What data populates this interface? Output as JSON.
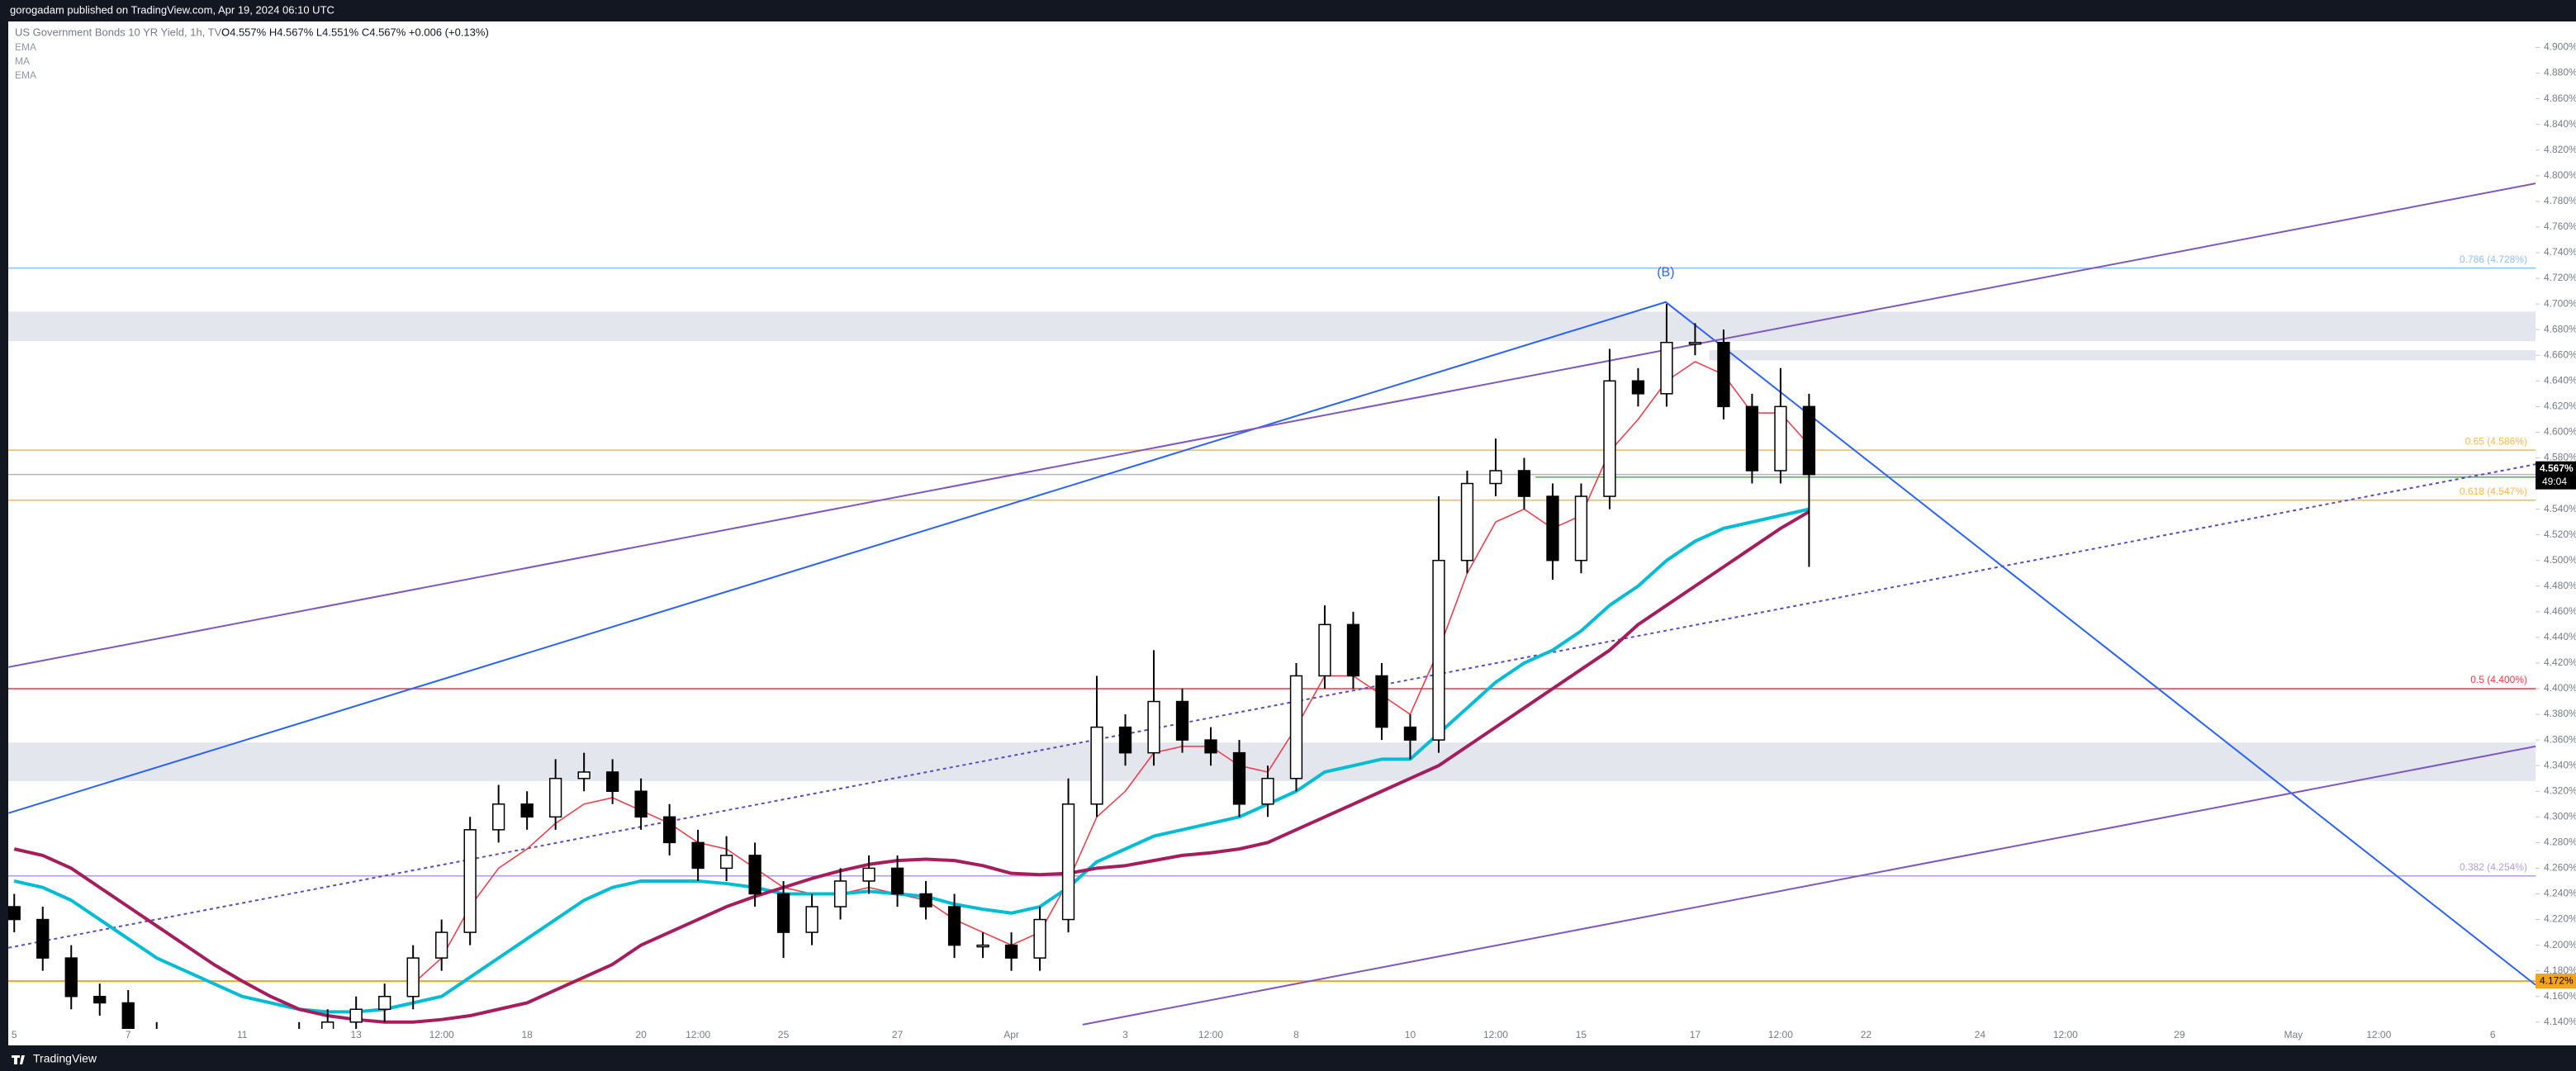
{
  "header": {
    "publisher": "gorogadam published on TradingView.com, Apr 19, 2024 06:10 UTC",
    "footer": "TradingView"
  },
  "chart_data": {
    "type": "candlestick",
    "title": "US Government Bonds 10 YR Yield, 1h, TVC",
    "ohlc_legend": "O4.557% H4.567% L4.551% C4.567% +0.006 (+0.13%)",
    "indicators": [
      "EMA",
      "MA",
      "EMA"
    ],
    "categories": [
      "5",
      null,
      null,
      null,
      "7",
      null,
      null,
      null,
      "11",
      null,
      null,
      null,
      "13",
      null,
      null,
      "12:00",
      null,
      null,
      "18",
      null,
      null,
      null,
      "20",
      null,
      "12:00",
      null,
      null,
      "25",
      null,
      null,
      null,
      "27",
      null,
      null,
      null,
      "Apr",
      null,
      null,
      null,
      "3",
      null,
      null,
      "12:00",
      null,
      null,
      "8",
      null,
      null,
      null,
      "10",
      null,
      null,
      "12:00",
      null,
      null,
      "15",
      null,
      null,
      null,
      "17",
      null,
      null,
      "12:00",
      null,
      null,
      "22",
      null,
      null,
      null,
      "24",
      null,
      null,
      "12:00",
      null,
      null,
      null,
      "29",
      null,
      null,
      null,
      "May",
      null,
      null,
      "12:00",
      null,
      null,
      null,
      "6",
      null
    ],
    "open": [
      4.23,
      4.22,
      4.19,
      4.16,
      4.155,
      4.13,
      4.12,
      4.11,
      4.11,
      4.12,
      4.12,
      4.13,
      4.14,
      4.15,
      4.16,
      4.19,
      4.21,
      4.29,
      4.31,
      4.3,
      4.33,
      4.335,
      4.32,
      4.3,
      4.28,
      4.26,
      4.27,
      4.24,
      4.21,
      4.23,
      4.25,
      4.26,
      4.24,
      4.23,
      4.2,
      4.2,
      4.19,
      4.22,
      4.31,
      4.37,
      4.35,
      4.39,
      4.36,
      4.35,
      4.31,
      4.33,
      4.41,
      4.45,
      4.41,
      4.37,
      4.36,
      4.5,
      4.56,
      4.57,
      4.55,
      4.5,
      4.55,
      4.64,
      4.63,
      4.67,
      4.67,
      4.62,
      4.57,
      4.62,
      null,
      null,
      null,
      null,
      null,
      null,
      null,
      null,
      null,
      null,
      null,
      null,
      null,
      null,
      null,
      null,
      null,
      null,
      null,
      null,
      null,
      null,
      null,
      null,
      null
    ],
    "high": [
      4.24,
      4.23,
      4.2,
      4.17,
      4.165,
      4.14,
      4.13,
      4.12,
      4.13,
      4.13,
      4.14,
      4.15,
      4.16,
      4.17,
      4.2,
      4.22,
      4.3,
      4.325,
      4.32,
      4.345,
      4.35,
      4.345,
      4.33,
      4.31,
      4.29,
      4.285,
      4.28,
      4.25,
      4.24,
      4.26,
      4.27,
      4.27,
      4.25,
      4.24,
      4.21,
      4.21,
      4.23,
      4.33,
      4.41,
      4.38,
      4.43,
      4.4,
      4.37,
      4.36,
      4.34,
      4.42,
      4.465,
      4.46,
      4.42,
      4.38,
      4.55,
      4.57,
      4.595,
      4.58,
      4.56,
      4.56,
      4.665,
      4.65,
      4.7,
      4.685,
      4.68,
      4.63,
      4.65,
      4.63,
      null,
      null,
      null,
      null,
      null,
      null,
      null,
      null,
      null,
      null,
      null,
      null,
      null,
      null,
      null,
      null,
      null,
      null,
      null,
      null,
      null,
      null,
      null,
      null,
      null
    ],
    "low": [
      4.21,
      4.18,
      4.15,
      4.145,
      4.12,
      4.11,
      4.1,
      4.1,
      4.1,
      4.11,
      4.11,
      4.12,
      4.13,
      4.14,
      4.15,
      4.18,
      4.2,
      4.28,
      4.29,
      4.29,
      4.32,
      4.31,
      4.29,
      4.27,
      4.25,
      4.25,
      4.23,
      4.19,
      4.2,
      4.22,
      4.24,
      4.23,
      4.22,
      4.19,
      4.19,
      4.18,
      4.18,
      4.21,
      4.3,
      4.34,
      4.34,
      4.35,
      4.34,
      4.3,
      4.3,
      4.32,
      4.4,
      4.4,
      4.36,
      4.345,
      4.35,
      4.49,
      4.55,
      4.54,
      4.485,
      4.49,
      4.54,
      4.62,
      4.62,
      4.66,
      4.61,
      4.56,
      4.56,
      4.495,
      null,
      null,
      null,
      null,
      null,
      null,
      null,
      null,
      null,
      null,
      null,
      null,
      null,
      null,
      null,
      null,
      null,
      null,
      null,
      null,
      null,
      null,
      null,
      null,
      null
    ],
    "close": [
      4.22,
      4.19,
      4.16,
      4.155,
      4.13,
      4.12,
      4.11,
      4.11,
      4.12,
      4.12,
      4.13,
      4.14,
      4.15,
      4.16,
      4.19,
      4.21,
      4.29,
      4.31,
      4.3,
      4.33,
      4.335,
      4.32,
      4.3,
      4.28,
      4.26,
      4.27,
      4.24,
      4.21,
      4.23,
      4.25,
      4.26,
      4.24,
      4.23,
      4.2,
      4.2,
      4.19,
      4.22,
      4.31,
      4.37,
      4.35,
      4.39,
      4.36,
      4.35,
      4.31,
      4.33,
      4.41,
      4.45,
      4.41,
      4.37,
      4.36,
      4.5,
      4.56,
      4.57,
      4.55,
      4.5,
      4.55,
      4.64,
      4.63,
      4.67,
      4.67,
      4.62,
      4.57,
      4.62,
      4.567,
      null,
      null,
      null,
      null,
      null,
      null,
      null,
      null,
      null,
      null,
      null,
      null,
      null,
      null,
      null,
      null,
      null,
      null,
      null,
      null,
      null,
      null,
      null,
      null,
      null
    ],
    "up_color": "#ffffff",
    "down_color": "#000000",
    "wick_color": "#000000",
    "series": [
      {
        "color": "#f23645",
        "width": 1.5,
        "values": [
          null,
          null,
          null,
          null,
          null,
          null,
          null,
          null,
          null,
          null,
          null,
          null,
          null,
          null,
          4.17,
          4.19,
          4.23,
          4.26,
          4.275,
          4.295,
          4.31,
          4.315,
          4.305,
          4.295,
          4.28,
          4.275,
          4.26,
          4.245,
          4.24,
          4.24,
          4.245,
          4.24,
          4.235,
          4.22,
          4.21,
          4.2,
          4.21,
          4.25,
          4.3,
          4.32,
          4.35,
          4.355,
          4.355,
          4.34,
          4.335,
          4.37,
          4.41,
          4.41,
          4.395,
          4.38,
          4.43,
          4.49,
          4.53,
          4.54,
          4.525,
          4.535,
          4.585,
          4.61,
          4.64,
          4.655,
          4.645,
          4.615,
          4.615,
          4.59,
          null,
          null,
          null,
          null,
          null,
          null,
          null,
          null,
          null,
          null,
          null,
          null,
          null,
          null,
          null,
          null,
          null,
          null,
          null,
          null,
          null,
          null,
          null,
          null,
          null
        ]
      },
      {
        "color": "#00bcd4",
        "width": 4,
        "values": [
          4.25,
          4.245,
          4.235,
          4.22,
          4.205,
          4.19,
          4.18,
          4.17,
          4.16,
          4.155,
          4.15,
          4.148,
          4.148,
          4.15,
          4.155,
          4.16,
          4.175,
          4.19,
          4.205,
          4.22,
          4.235,
          4.245,
          4.25,
          4.25,
          4.25,
          4.248,
          4.245,
          4.24,
          4.24,
          4.24,
          4.242,
          4.24,
          4.238,
          4.232,
          4.228,
          4.225,
          4.23,
          4.245,
          4.265,
          4.275,
          4.285,
          4.29,
          4.295,
          4.3,
          4.31,
          4.32,
          4.335,
          4.34,
          4.345,
          4.345,
          4.365,
          4.385,
          4.405,
          4.42,
          4.43,
          4.445,
          4.465,
          4.48,
          4.5,
          4.515,
          4.525,
          4.53,
          4.535,
          4.54,
          null,
          null,
          null,
          null,
          null,
          null,
          null,
          null,
          null,
          null,
          null,
          null,
          null,
          null,
          null,
          null,
          null,
          null,
          null,
          null,
          null,
          null,
          null,
          null,
          null
        ]
      },
      {
        "color": "#a51d5c",
        "width": 4,
        "values": [
          4.275,
          4.27,
          4.26,
          4.245,
          4.23,
          4.215,
          4.2,
          4.185,
          4.172,
          4.16,
          4.15,
          4.145,
          4.142,
          4.14,
          4.14,
          4.142,
          4.145,
          4.15,
          4.155,
          4.165,
          4.175,
          4.185,
          4.2,
          4.21,
          4.22,
          4.23,
          4.238,
          4.245,
          4.252,
          4.258,
          4.263,
          4.266,
          4.267,
          4.266,
          4.262,
          4.256,
          4.255,
          4.256,
          4.26,
          4.262,
          4.266,
          4.27,
          4.272,
          4.275,
          4.28,
          4.29,
          4.3,
          4.31,
          4.32,
          4.33,
          4.34,
          4.355,
          4.37,
          4.385,
          4.4,
          4.415,
          4.43,
          4.45,
          4.465,
          4.48,
          4.495,
          4.51,
          4.525,
          4.538,
          null,
          null,
          null,
          null,
          null,
          null,
          null,
          null,
          null,
          null,
          null,
          null,
          null,
          null,
          null,
          null,
          null,
          null,
          null,
          null,
          null,
          null,
          null,
          null,
          null
        ]
      }
    ],
    "levels": [
      {
        "value": 4.728,
        "label": "0.786 (4.728%)",
        "color": "#90bff9"
      },
      {
        "value": 4.586,
        "label": "0.65 (4.586%)",
        "color": "#ffb74d"
      },
      {
        "value": 4.547,
        "label": "0.618 (4.547%)",
        "color": "#ffb74d"
      },
      {
        "value": 4.4,
        "label": "0.5 (4.400%)",
        "color": "#f23645"
      },
      {
        "value": 4.254,
        "label": "0.382 (4.254%)",
        "color": "#b39ddb"
      }
    ],
    "support": {
      "value": 4.172,
      "label": "4.172%",
      "color": "#f7a21b"
    },
    "green_line": {
      "value": 4.565,
      "start": 53.4,
      "color": "#4caf50"
    },
    "zones": [
      {
        "from": 4.671,
        "to": 4.694,
        "start": -1
      },
      {
        "from": 4.328,
        "to": 4.358,
        "start": -1
      },
      {
        "from": 4.656,
        "to": 4.664,
        "start": 59.5
      }
    ],
    "trend_lines": [
      {
        "points": [
          [
            -0.2,
            4.303
          ],
          [
            57.97,
            4.7015
          ],
          [
            88.5,
            4.169
          ]
        ],
        "color": "#2962ff",
        "dash": false
      },
      {
        "points": [
          [
            -0.2,
            4.4168
          ],
          [
            88.5,
            4.794
          ]
        ],
        "color": "#7e57c2",
        "dash": false
      },
      {
        "points": [
          [
            37.5,
            4.138
          ],
          [
            88.5,
            4.355
          ]
        ],
        "color": "#7e57c2",
        "dash": false
      },
      {
        "points": [
          [
            -0.2,
            4.198
          ],
          [
            88.5,
            4.575
          ]
        ],
        "color": "#5c4bbf",
        "dash": true
      }
    ],
    "wave_label": {
      "text": "(B)",
      "x": 57.97,
      "y": 4.718
    },
    "price_tag": {
      "value": 4.567,
      "label": "4.567%",
      "countdown": "49:04"
    },
    "ylim": [
      4.136,
      4.919
    ],
    "yticks": [
      {
        "value": 4.14,
        "label": "4.140%"
      },
      {
        "value": 4.16,
        "label": "4.160%"
      },
      {
        "value": 4.18,
        "label": "4.180%"
      },
      {
        "value": 4.2,
        "label": "4.200%"
      },
      {
        "value": 4.22,
        "label": "4.220%"
      },
      {
        "value": 4.24,
        "label": "4.240%"
      },
      {
        "value": 4.26,
        "label": "4.260%"
      },
      {
        "value": 4.28,
        "label": "4.280%"
      },
      {
        "value": 4.3,
        "label": "4.300%"
      },
      {
        "value": 4.32,
        "label": "4.320%"
      },
      {
        "value": 4.34,
        "label": "4.340%"
      },
      {
        "value": 4.36,
        "label": "4.360%"
      },
      {
        "value": 4.38,
        "label": "4.380%"
      },
      {
        "value": 4.4,
        "label": "4.400%"
      },
      {
        "value": 4.42,
        "label": "4.420%"
      },
      {
        "value": 4.44,
        "label": "4.440%"
      },
      {
        "value": 4.46,
        "label": "4.460%"
      },
      {
        "value": 4.48,
        "label": "4.480%"
      },
      {
        "value": 4.5,
        "label": "4.500%"
      },
      {
        "value": 4.52,
        "label": "4.520%"
      },
      {
        "value": 4.54,
        "label": "4.540%"
      },
      {
        "value": 4.56,
        "label": "4.560%"
      },
      {
        "value": 4.58,
        "label": "4.580%"
      },
      {
        "value": 4.6,
        "label": "4.600%"
      },
      {
        "value": 4.62,
        "label": "4.620%"
      },
      {
        "value": 4.64,
        "label": "4.640%"
      },
      {
        "value": 4.66,
        "label": "4.660%"
      },
      {
        "value": 4.68,
        "label": "4.680%"
      },
      {
        "value": 4.7,
        "label": "4.700%"
      },
      {
        "value": 4.72,
        "label": "4.720%"
      },
      {
        "value": 4.74,
        "label": "4.740%"
      },
      {
        "value": 4.76,
        "label": "4.760%"
      },
      {
        "value": 4.78,
        "label": "4.780%"
      },
      {
        "value": 4.8,
        "label": "4.800%"
      },
      {
        "value": 4.82,
        "label": "4.820%"
      },
      {
        "value": 4.84,
        "label": "4.840%"
      },
      {
        "value": 4.86,
        "label": "4.860%"
      },
      {
        "value": 4.88,
        "label": "4.880%"
      },
      {
        "value": 4.9,
        "label": "4.900%"
      }
    ]
  }
}
